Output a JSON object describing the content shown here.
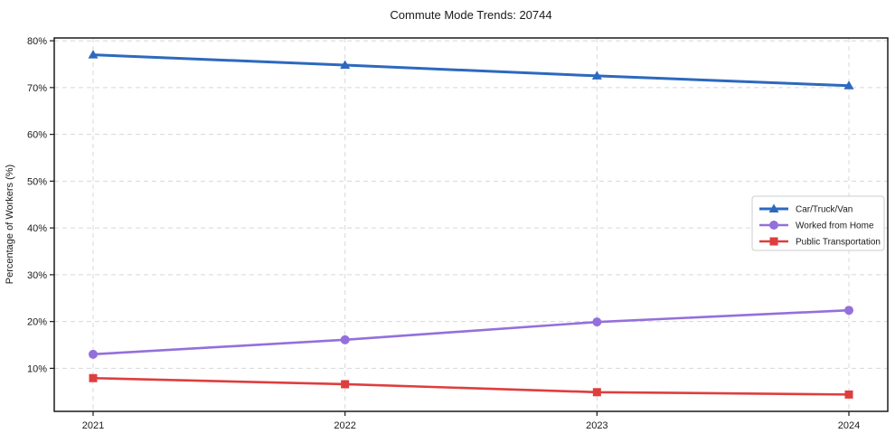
{
  "chart_data": {
    "type": "line",
    "title": "Commute Mode Trends: 20744",
    "xlabel": "",
    "ylabel": "Percentage of Workers (%)",
    "categories": [
      "2021",
      "2022",
      "2023",
      "2024"
    ],
    "series": [
      {
        "name": "Car/Truck/Van",
        "color": "#2d69be",
        "marker": "triangle",
        "line_width": 3,
        "values": [
          77.0,
          74.8,
          72.5,
          70.4
        ]
      },
      {
        "name": "Worked from Home",
        "color": "#9370db",
        "marker": "circle",
        "line_width": 2.6,
        "values": [
          13.0,
          16.1,
          19.9,
          22.4
        ]
      },
      {
        "name": "Public Transportation",
        "color": "#de3e3e",
        "marker": "square",
        "line_width": 2.6,
        "values": [
          7.9,
          6.6,
          4.9,
          4.4
        ]
      }
    ],
    "yticks": [
      10,
      20,
      30,
      40,
      50,
      60,
      70,
      80
    ],
    "ytick_suffix": "%",
    "ylim": [
      0.8,
      80.6
    ],
    "grid": "dashed",
    "legend_position": "center-right",
    "colors": {
      "grid": "#d8d8d8",
      "axis": "#1a1a1a",
      "background": "#ffffff",
      "legend_border": "#cccccc",
      "legend_background": "#ffffff"
    }
  }
}
